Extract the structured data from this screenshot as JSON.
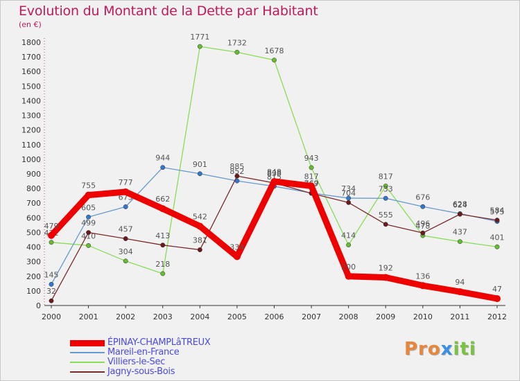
{
  "title": "Evolution du Montant de la Dette par Habitant",
  "subtitle": "(en €)",
  "logo_text": "Proxiti",
  "chart_data": {
    "type": "line",
    "title": "Evolution du Montant de la Dette par Habitant",
    "ylabel": "(en €)",
    "xlabel": "",
    "ylim": [
      0,
      1800
    ],
    "yticks": [
      0,
      100,
      200,
      300,
      400,
      500,
      600,
      700,
      800,
      900,
      1000,
      1100,
      1200,
      1300,
      1400,
      1500,
      1600,
      1700,
      1800
    ],
    "x": [
      "2000",
      "2001",
      "2002",
      "2003",
      "2004",
      "2005",
      "2006",
      "2007",
      "2008",
      "2009",
      "2010",
      "2011",
      "2012"
    ],
    "series": [
      {
        "name": "Villiers-le-Sec",
        "color": "#88dd55",
        "markerColor": "#66bb33",
        "values": [
          432,
          410,
          304,
          218,
          1771,
          1732,
          1678,
          943,
          414,
          817,
          478,
          437,
          401
        ]
      },
      {
        "name": "Mareil-en-France",
        "color": "#6699cc",
        "markerColor": "#3377cc",
        "values": [
          145,
          605,
          675,
          944,
          901,
          852,
          815,
          769,
          734,
          733,
          676,
          628,
          575
        ]
      },
      {
        "name": "Jagny-sous-Bois",
        "color": "#7a2a2a",
        "markerColor": "#6a1a1a",
        "values": [
          32,
          499,
          457,
          413,
          381,
          885,
          838,
          767,
          704,
          555,
          496,
          624,
          584
        ]
      },
      {
        "name": "ÉPINAY-CHAMPLâTREUX",
        "color": "#ee0000",
        "markerColor": "#ee0000",
        "values": [
          479,
          755,
          777,
          662,
          542,
          334,
          848,
          817,
          200,
          192,
          136,
          94,
          47
        ],
        "bold": true
      }
    ],
    "legend_order": [
      "ÉPINAY-CHAMPLâTREUX",
      "Mareil-en-France",
      "Villiers-le-Sec",
      "Jagny-sous-Bois"
    ],
    "legend_position": "bottom-left",
    "grid": false
  }
}
